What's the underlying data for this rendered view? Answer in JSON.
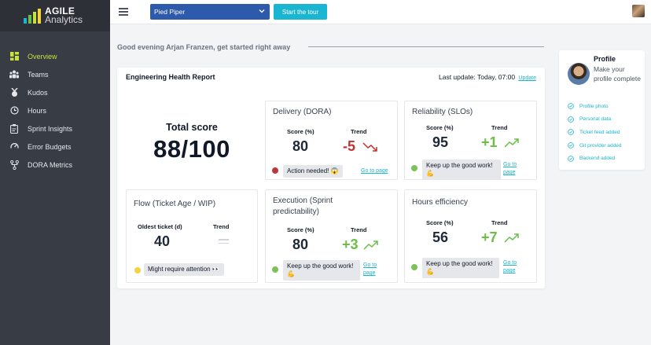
{
  "app": {
    "logo_line1": "AGILE",
    "logo_line2": "Analytics",
    "accent": "#c6e03c",
    "link_color": "#1ab5d0"
  },
  "sidebar": {
    "items": [
      {
        "label": "Overview",
        "icon": "grid-icon",
        "active": true
      },
      {
        "label": "Teams",
        "icon": "people-icon",
        "active": false
      },
      {
        "label": "Kudos",
        "icon": "medal-icon",
        "active": false
      },
      {
        "label": "Hours",
        "icon": "clock-icon",
        "active": false
      },
      {
        "label": "Sprint Insights",
        "icon": "clipboard-icon",
        "active": false
      },
      {
        "label": "Error Budgets",
        "icon": "gauge-icon",
        "active": false
      },
      {
        "label": "DORA Metrics",
        "icon": "nodes-icon",
        "active": false
      }
    ]
  },
  "topbar": {
    "project": "Pied Piper",
    "tour_label": "Start the tour"
  },
  "greeting": "Good evening Arjan Franzen, get started right away",
  "report": {
    "title": "Engineering Health Report",
    "last_update_label": "Last update: Today, 07:00",
    "update_link": "Update",
    "total_label": "Total score",
    "total_value": "88/100",
    "cards": {
      "delivery": {
        "title": "Delivery (DORA)",
        "score_label": "Score (%)",
        "score": "80",
        "trend_label": "Trend",
        "trend": "-5",
        "status": "Action needed! 😱",
        "status_color": "#b83a3a",
        "link": "Go to page"
      },
      "reliability": {
        "title": "Reliability (SLOs)",
        "score_label": "Score (%)",
        "score": "95",
        "trend_label": "Trend",
        "trend": "+1",
        "status": "Keep up the good work! 💪",
        "status_color": "#7cc25a",
        "link": "Go to page"
      },
      "flow": {
        "title": "Flow (Ticket Age / WIP)",
        "score_label": "Oldest ticket (d)",
        "score": "40",
        "trend_label": "Trend",
        "status": "Might require attention 👀",
        "status_color": "#f2d43d"
      },
      "execution": {
        "title": "Execution (Sprint predictability)",
        "score_label": "Score (%)",
        "score": "80",
        "trend_label": "Trend",
        "trend": "+3",
        "status": "Keep up the good work! 💪",
        "status_color": "#7cc25a",
        "link": "Go to page"
      },
      "hours": {
        "title": "Hours efficiency",
        "score_label": "Score (%)",
        "score": "56",
        "trend_label": "Trend",
        "trend": "+7",
        "status": "Keep up the good work! 💪",
        "status_color": "#7cc25a",
        "link": "Go to page"
      }
    }
  },
  "profile": {
    "title": "Profile",
    "subtitle": "Make your profile complete",
    "checklist": [
      "Profile photo",
      "Personal data",
      "Ticket feed added",
      "Git provider added",
      "Backend added"
    ]
  }
}
